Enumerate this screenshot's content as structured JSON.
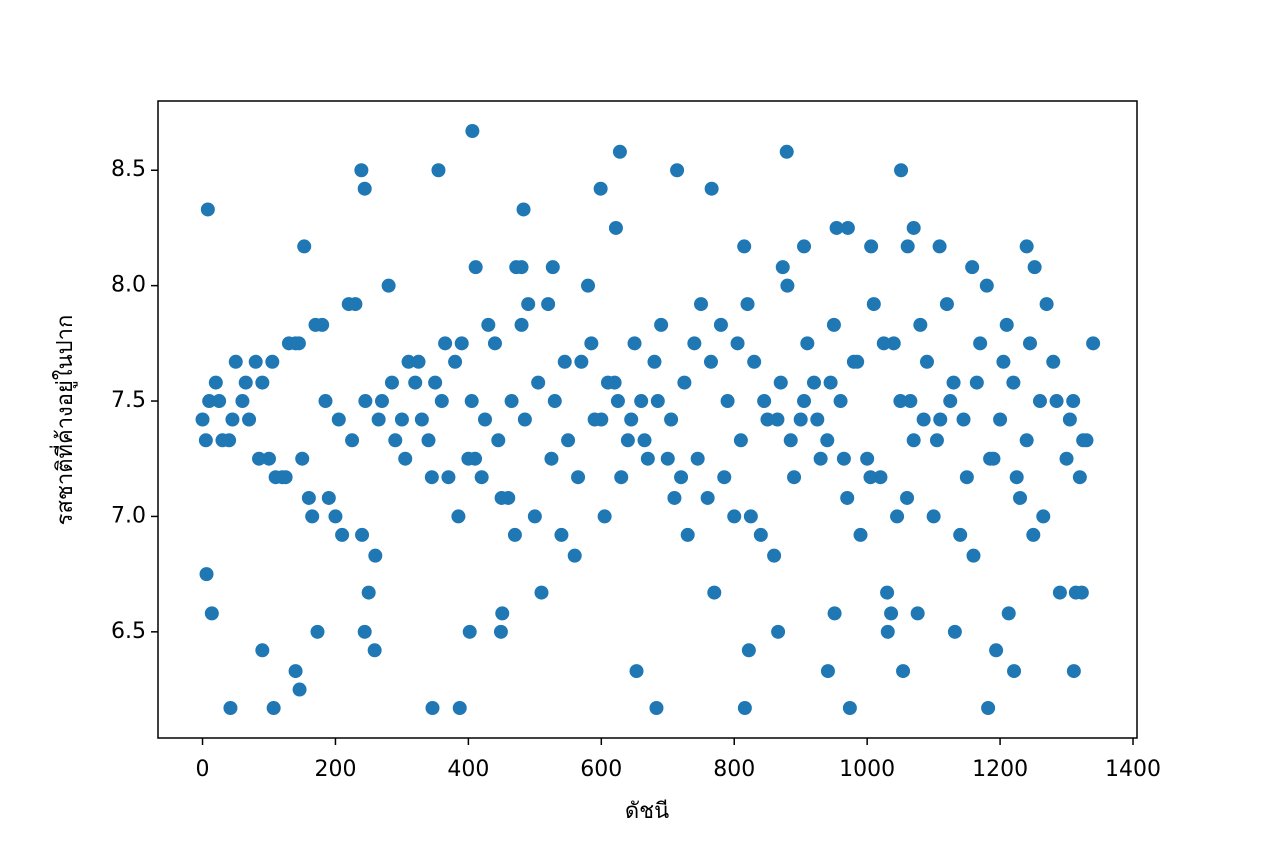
{
  "chart_data": {
    "type": "scatter",
    "xlabel": "ดัชนี",
    "ylabel": "รสชาติที่ค้างอยู่ในปาก",
    "color": "#1f77b4",
    "xlim": [
      -67,
      1406
    ],
    "ylim": [
      6.04,
      8.8
    ],
    "xticks": [
      0,
      200,
      400,
      600,
      800,
      1000,
      1200,
      1400
    ],
    "yticks": [
      6.5,
      {
        "value": 7,
        "label": "7.0"
      },
      7.5,
      {
        "value": 8,
        "label": "8.0"
      },
      8.5
    ],
    "x": [
      0,
      20,
      40,
      60,
      80,
      100,
      120,
      140,
      160,
      180,
      200,
      220,
      240,
      260,
      280,
      300,
      320,
      340,
      360,
      380,
      400,
      420,
      440,
      460,
      480,
      500,
      520,
      540,
      560,
      580,
      600,
      620,
      640,
      660,
      680,
      700,
      720,
      740,
      760,
      780,
      800,
      820,
      840,
      860,
      880,
      900,
      920,
      940,
      960,
      980,
      1000,
      1020,
      1040,
      1060,
      1080,
      1100,
      1120,
      1140,
      1160,
      1180,
      1200,
      1220,
      1240,
      1260,
      1280,
      1300,
      1320,
      1340,
      10,
      30,
      50,
      70,
      90,
      110,
      130,
      150,
      170,
      190,
      210,
      230,
      250,
      270,
      290,
      310,
      330,
      350,
      370,
      390,
      410,
      430,
      450,
      470,
      490,
      510,
      530,
      550,
      570,
      590,
      610,
      630,
      650,
      670,
      690,
      710,
      730,
      750,
      770,
      790,
      810,
      830,
      850,
      870,
      890,
      910,
      930,
      950,
      970,
      990,
      1010,
      1030,
      1050,
      1070,
      1090,
      1110,
      1130,
      1150,
      1170,
      1190,
      1210,
      1230,
      1250,
      1270,
      1290,
      1310,
      1330,
      5,
      25,
      45,
      65,
      85,
      105,
      125,
      145,
      165,
      185,
      205,
      225,
      245,
      265,
      285,
      305,
      325,
      345,
      365,
      385,
      405,
      425,
      445,
      465,
      485,
      505,
      525,
      545,
      565,
      585,
      605,
      625,
      645,
      665,
      685,
      705,
      725,
      745,
      765,
      785,
      805,
      825,
      845,
      865,
      885,
      905,
      925,
      945,
      965,
      985,
      1005,
      1025,
      1045,
      1065,
      1085,
      1105,
      1125,
      1145,
      1165,
      1185,
      1205,
      1225,
      1245,
      1265,
      1285,
      1305,
      1325,
      8,
      42,
      107,
      90,
      140,
      146,
      14,
      6,
      153,
      173,
      239,
      244,
      244,
      259,
      346,
      355,
      387,
      406,
      402,
      449,
      451,
      483,
      599,
      628,
      622,
      653,
      683,
      714,
      766,
      816,
      822,
      815,
      866,
      879,
      905,
      941,
      951,
      974,
      954,
      971,
      1006,
      1031,
      1036,
      1054,
      1051,
      1070,
      1061,
      1109,
      1076,
      1132,
      1182,
      1194,
      1221,
      1213,
      1240,
      1311,
      1158,
      1314,
      1323,
      411,
      472,
      480,
      527,
      873,
      1252
    ],
    "values": [
      7.42,
      7.58,
      7.33,
      7.5,
      7.67,
      7.25,
      7.17,
      7.75,
      7.08,
      7.83,
      7.0,
      7.92,
      6.92,
      6.83,
      8.0,
      7.42,
      7.58,
      7.33,
      7.5,
      7.67,
      7.25,
      7.17,
      7.75,
      7.08,
      7.83,
      7.0,
      7.92,
      6.92,
      6.83,
      8.0,
      7.42,
      7.58,
      7.33,
      7.5,
      7.67,
      7.25,
      7.17,
      7.75,
      7.08,
      7.83,
      7.0,
      7.92,
      6.92,
      6.83,
      8.0,
      7.42,
      7.58,
      7.33,
      7.5,
      7.67,
      7.25,
      7.17,
      7.75,
      7.08,
      7.83,
      7.0,
      7.92,
      6.92,
      6.83,
      8.0,
      7.42,
      7.58,
      7.33,
      7.5,
      7.67,
      7.25,
      7.17,
      7.75,
      7.5,
      7.33,
      7.67,
      7.42,
      7.58,
      7.17,
      7.75,
      7.25,
      7.83,
      7.08,
      6.92,
      7.92,
      6.67,
      7.5,
      7.33,
      7.67,
      7.42,
      7.58,
      7.17,
      7.75,
      7.25,
      7.83,
      7.08,
      6.92,
      7.92,
      6.67,
      7.5,
      7.33,
      7.67,
      7.42,
      7.58,
      7.17,
      7.75,
      7.25,
      7.83,
      7.08,
      6.92,
      7.92,
      6.67,
      7.5,
      7.33,
      7.67,
      7.42,
      7.58,
      7.17,
      7.75,
      7.25,
      7.83,
      7.08,
      6.92,
      7.92,
      6.67,
      7.5,
      7.33,
      7.67,
      7.42,
      7.58,
      7.17,
      7.75,
      7.25,
      7.83,
      7.08,
      6.92,
      7.92,
      6.67,
      7.5,
      7.33,
      7.33,
      7.5,
      7.42,
      7.58,
      7.25,
      7.67,
      7.17,
      7.75,
      7.0,
      7.5,
      7.42,
      7.33,
      7.5,
      7.42,
      7.58,
      7.25,
      7.67,
      7.17,
      7.75,
      7.0,
      7.5,
      7.42,
      7.33,
      7.5,
      7.42,
      7.58,
      7.25,
      7.67,
      7.17,
      7.75,
      7.0,
      7.5,
      7.42,
      7.33,
      7.5,
      7.42,
      7.58,
      7.25,
      7.67,
      7.17,
      7.75,
      7.0,
      7.5,
      7.42,
      7.33,
      7.5,
      7.42,
      7.58,
      7.25,
      7.67,
      7.17,
      7.75,
      7.0,
      7.5,
      7.42,
      7.33,
      7.5,
      7.42,
      7.58,
      7.25,
      7.67,
      7.17,
      7.75,
      7.0,
      7.5,
      7.42,
      7.33,
      8.33,
      6.17,
      6.17,
      6.42,
      6.33,
      6.25,
      6.58,
      6.75,
      8.17,
      6.5,
      8.5,
      8.42,
      6.5,
      6.42,
      6.17,
      8.5,
      6.17,
      8.67,
      6.5,
      6.5,
      6.58,
      8.33,
      8.42,
      8.58,
      8.25,
      6.33,
      6.17,
      8.5,
      8.42,
      6.17,
      6.42,
      8.17,
      6.5,
      8.58,
      8.17,
      6.33,
      6.58,
      6.17,
      8.25,
      8.25,
      8.17,
      6.5,
      6.58,
      6.33,
      8.5,
      8.25,
      8.17,
      8.17,
      6.58,
      6.5,
      6.17,
      6.42,
      6.33,
      6.58,
      8.17,
      6.33,
      8.08,
      6.67,
      6.67,
      8.08,
      8.08,
      8.08,
      8.08,
      8.08,
      8.08
    ]
  }
}
